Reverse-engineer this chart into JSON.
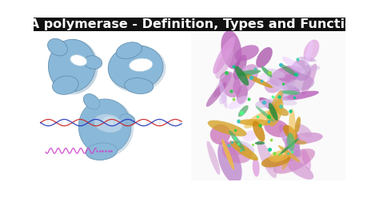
{
  "title": "RNA polymerase - Definition, Types and Functions",
  "title_bg": "#111111",
  "title_color": "#ffffff",
  "title_fontsize": 11.5,
  "bg_color": "#ffffff",
  "blob_color": "#8ab8d8",
  "blob_edge": "#5a88aa",
  "blob_shadow": "#6a98b8",
  "dna_color1": "#cc2222",
  "dna_color2": "#2233bb",
  "rna_color": "#cc44cc",
  "protein_purple": "#cc88cc",
  "protein_yellow": "#ddaa33",
  "protein_green": "#44aa44"
}
